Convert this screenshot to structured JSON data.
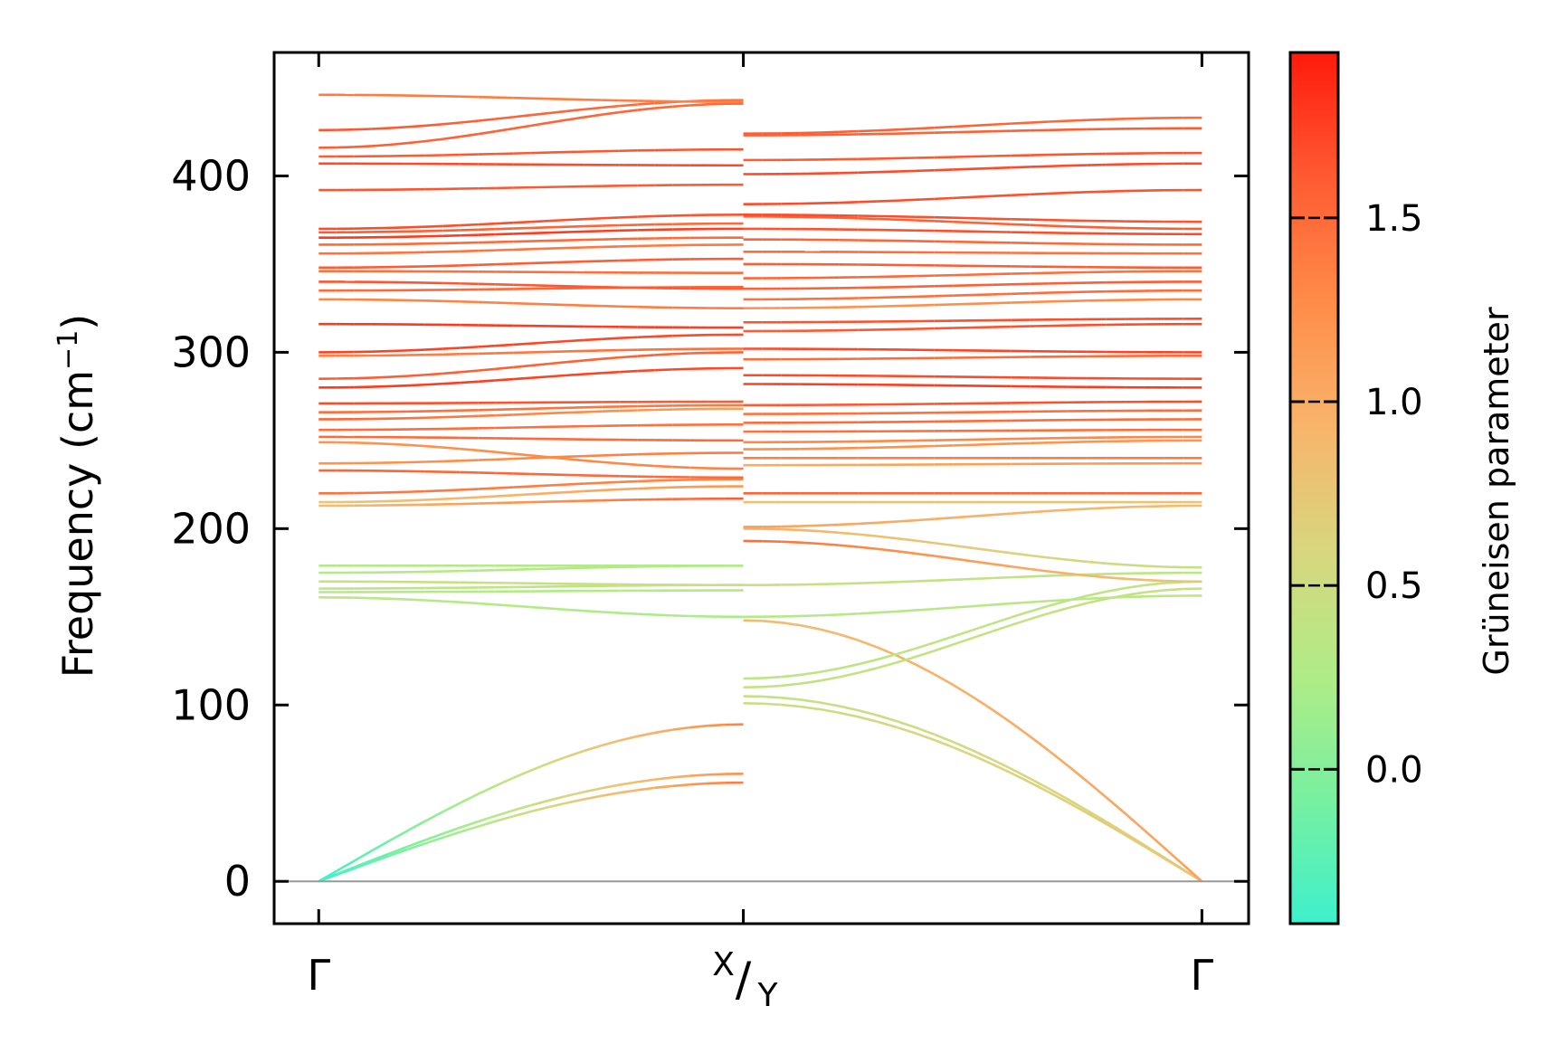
{
  "chart_data": {
    "type": "line",
    "title": "",
    "ylabel": {
      "text": "Frequency (cm",
      "sup": "−1",
      "close": ")"
    },
    "xlabel": "",
    "ylim": [
      -24,
      470
    ],
    "yticks": [
      0,
      100,
      200,
      300,
      400
    ],
    "x_ticks": [
      {
        "pos": 0,
        "label": "Γ"
      },
      {
        "pos": 1,
        "label_top": "X",
        "slash": "/",
        "label_bottom": "Y"
      },
      {
        "pos": 2.08,
        "label": "Γ"
      }
    ],
    "xlim": [
      -0.105,
      2.19
    ],
    "grid": false,
    "zero_line": true,
    "colorbar": {
      "label": "Grüneisen parameter",
      "range": [
        -0.42,
        1.95
      ],
      "ticks": [
        0.0,
        0.5,
        1.0,
        1.5
      ],
      "tick_labels": [
        "0.0",
        "0.5",
        "1.0",
        "1.5"
      ],
      "stops": [
        "#3ef0cc",
        "#78f0a0",
        "#b0ec86",
        "#d8d67e",
        "#f8b46a",
        "#ff8c48",
        "#ff5a32",
        "#ff1a0c"
      ]
    },
    "segments": [
      {
        "name": "Γ–X",
        "bands": [
          {
            "y0": 0,
            "y1": 89,
            "g0": -0.4,
            "g1": 1.35,
            "acoustic": true
          },
          {
            "y0": 0,
            "y1": 61,
            "g0": -0.4,
            "g1": 1.25,
            "acoustic": true
          },
          {
            "y0": 0,
            "y1": 56,
            "g0": -0.4,
            "g1": 1.4,
            "acoustic": true
          },
          {
            "y0": 161,
            "y1": 150,
            "g0": 0.35,
            "g1": 0.2
          },
          {
            "y0": 164,
            "y1": 165,
            "g0": 0.3,
            "g1": 0.25
          },
          {
            "y0": 166,
            "y1": 168,
            "g0": 0.35,
            "g1": 0.35
          },
          {
            "y0": 170,
            "y1": 168,
            "g0": 0.4,
            "g1": 0.5
          },
          {
            "y0": 175,
            "y1": 179,
            "g0": 0.3,
            "g1": 0.3
          },
          {
            "y0": 179,
            "y1": 179,
            "g0": 0.3,
            "g1": 0.25
          },
          {
            "y0": 213,
            "y1": 217,
            "g0": 0.85,
            "g1": 1.6
          },
          {
            "y0": 215,
            "y1": 224,
            "g0": 0.75,
            "g1": 1.2
          },
          {
            "y0": 220,
            "y1": 228,
            "g0": 1.45,
            "g1": 1.3
          },
          {
            "y0": 233,
            "y1": 229,
            "g0": 1.55,
            "g1": 1.5
          },
          {
            "y0": 237,
            "y1": 243,
            "g0": 1.2,
            "g1": 1.4
          },
          {
            "y0": 249,
            "y1": 234,
            "g0": 1.2,
            "g1": 1.35
          },
          {
            "y0": 252,
            "y1": 250,
            "g0": 1.5,
            "g1": 1.5
          },
          {
            "y0": 256,
            "y1": 259,
            "g0": 1.5,
            "g1": 1.45
          },
          {
            "y0": 262,
            "y1": 268,
            "g0": 1.55,
            "g1": 1.1
          },
          {
            "y0": 266,
            "y1": 270,
            "g0": 1.5,
            "g1": 1.4
          },
          {
            "y0": 271,
            "y1": 272,
            "g0": 1.7,
            "g1": 1.6
          },
          {
            "y0": 280,
            "y1": 291,
            "g0": 1.8,
            "g1": 1.7
          },
          {
            "y0": 285,
            "y1": 300,
            "g0": 1.6,
            "g1": 1.55
          },
          {
            "y0": 298,
            "y1": 302,
            "g0": 1.35,
            "g1": 1.5
          },
          {
            "y0": 300,
            "y1": 310,
            "g0": 1.75,
            "g1": 1.7
          },
          {
            "y0": 316,
            "y1": 314,
            "g0": 1.8,
            "g1": 1.75
          },
          {
            "y0": 330,
            "y1": 325,
            "g0": 1.3,
            "g1": 1.4
          },
          {
            "y0": 335,
            "y1": 337,
            "g0": 1.5,
            "g1": 1.55
          },
          {
            "y0": 340,
            "y1": 336,
            "g0": 1.65,
            "g1": 1.6
          },
          {
            "y0": 346,
            "y1": 345,
            "g0": 1.45,
            "g1": 1.5
          },
          {
            "y0": 348,
            "y1": 353,
            "g0": 1.6,
            "g1": 1.6
          },
          {
            "y0": 356,
            "y1": 361,
            "g0": 1.45,
            "g1": 1.4
          },
          {
            "y0": 361,
            "y1": 365,
            "g0": 1.5,
            "g1": 1.5
          },
          {
            "y0": 365,
            "y1": 370,
            "g0": 1.8,
            "g1": 1.75
          },
          {
            "y0": 368,
            "y1": 373,
            "g0": 1.6,
            "g1": 1.5
          },
          {
            "y0": 370,
            "y1": 378,
            "g0": 1.7,
            "g1": 1.65
          },
          {
            "y0": 392,
            "y1": 395,
            "g0": 1.65,
            "g1": 1.6
          },
          {
            "y0": 407,
            "y1": 406,
            "g0": 1.7,
            "g1": 1.7
          },
          {
            "y0": 411,
            "y1": 415,
            "g0": 1.6,
            "g1": 1.65
          },
          {
            "y0": 416,
            "y1": 441,
            "g0": 1.6,
            "g1": 1.5
          },
          {
            "y0": 426,
            "y1": 443,
            "g0": 1.65,
            "g1": 1.45
          },
          {
            "y0": 446,
            "y1": 442,
            "g0": 1.4,
            "g1": 1.35
          }
        ]
      },
      {
        "name": "Y–Γ",
        "bands": [
          {
            "y0": 105,
            "y1": 0,
            "g0": 0.4,
            "g1": 0.7,
            "acoustic": true
          },
          {
            "y0": 101,
            "y1": 0,
            "g0": 0.45,
            "g1": 0.75,
            "acoustic": true
          },
          {
            "y0": 148,
            "y1": 0,
            "g0": 0.85,
            "g1": 1.1,
            "acoustic": true
          },
          {
            "y0": 110,
            "y1": 166,
            "g0": 0.4,
            "g1": 0.45
          },
          {
            "y0": 115,
            "y1": 170,
            "g0": 0.35,
            "g1": 0.4
          },
          {
            "y0": 150,
            "y1": 162,
            "g0": 0.3,
            "g1": 0.35
          },
          {
            "y0": 168,
            "y1": 175,
            "g0": 0.45,
            "g1": 0.35
          },
          {
            "y0": 193,
            "y1": 170,
            "g0": 1.5,
            "g1": 0.75
          },
          {
            "y0": 200,
            "y1": 178,
            "g0": 1.0,
            "g1": 0.4
          },
          {
            "y0": 201,
            "y1": 213,
            "g0": 1.1,
            "g1": 0.85
          },
          {
            "y0": 215,
            "y1": 215,
            "g0": 0.8,
            "g1": 0.8
          },
          {
            "y0": 220,
            "y1": 220,
            "g0": 1.55,
            "g1": 1.55
          },
          {
            "y0": 236,
            "y1": 237,
            "g0": 1.0,
            "g1": 1.2
          },
          {
            "y0": 240,
            "y1": 240,
            "g0": 1.35,
            "g1": 1.4
          },
          {
            "y0": 245,
            "y1": 250,
            "g0": 1.25,
            "g1": 1.2
          },
          {
            "y0": 249,
            "y1": 252,
            "g0": 1.3,
            "g1": 1.3
          },
          {
            "y0": 255,
            "y1": 256,
            "g0": 1.45,
            "g1": 1.5
          },
          {
            "y0": 260,
            "y1": 262,
            "g0": 1.5,
            "g1": 1.5
          },
          {
            "y0": 265,
            "y1": 267,
            "g0": 1.45,
            "g1": 1.5
          },
          {
            "y0": 270,
            "y1": 272,
            "g0": 1.6,
            "g1": 1.7
          },
          {
            "y0": 282,
            "y1": 280,
            "g0": 1.75,
            "g1": 1.8
          },
          {
            "y0": 287,
            "y1": 285,
            "g0": 1.7,
            "g1": 1.7
          },
          {
            "y0": 296,
            "y1": 298,
            "g0": 1.5,
            "g1": 1.5
          },
          {
            "y0": 302,
            "y1": 300,
            "g0": 1.7,
            "g1": 1.75
          },
          {
            "y0": 312,
            "y1": 316,
            "g0": 1.6,
            "g1": 1.7
          },
          {
            "y0": 317,
            "y1": 319,
            "g0": 1.65,
            "g1": 1.7
          },
          {
            "y0": 325,
            "y1": 330,
            "g0": 1.2,
            "g1": 1.3
          },
          {
            "y0": 330,
            "y1": 335,
            "g0": 1.45,
            "g1": 1.5
          },
          {
            "y0": 336,
            "y1": 340,
            "g0": 1.55,
            "g1": 1.6
          },
          {
            "y0": 342,
            "y1": 346,
            "g0": 1.55,
            "g1": 1.45
          },
          {
            "y0": 350,
            "y1": 348,
            "g0": 1.6,
            "g1": 1.6
          },
          {
            "y0": 357,
            "y1": 356,
            "g0": 1.5,
            "g1": 1.45
          },
          {
            "y0": 364,
            "y1": 361,
            "g0": 1.55,
            "g1": 1.5
          },
          {
            "y0": 370,
            "y1": 367,
            "g0": 1.65,
            "g1": 1.7
          },
          {
            "y0": 377,
            "y1": 370,
            "g0": 1.55,
            "g1": 1.6
          },
          {
            "y0": 378,
            "y1": 374,
            "g0": 1.7,
            "g1": 1.65
          },
          {
            "y0": 384,
            "y1": 392,
            "g0": 1.7,
            "g1": 1.65
          },
          {
            "y0": 401,
            "y1": 407,
            "g0": 1.7,
            "g1": 1.7
          },
          {
            "y0": 409,
            "y1": 413,
            "g0": 1.6,
            "g1": 1.65
          },
          {
            "y0": 423,
            "y1": 427,
            "g0": 1.55,
            "g1": 1.6
          },
          {
            "y0": 424,
            "y1": 433,
            "g0": 1.6,
            "g1": 1.5
          }
        ]
      }
    ]
  }
}
